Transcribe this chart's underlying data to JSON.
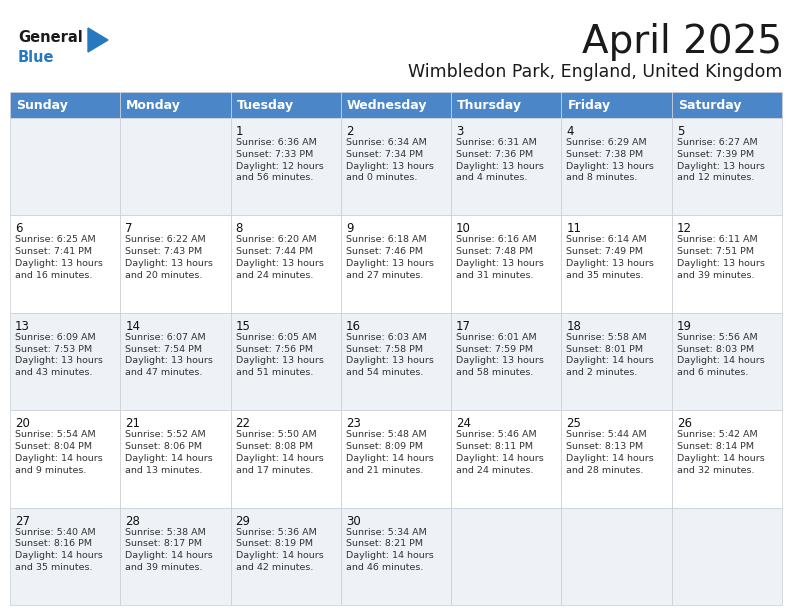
{
  "title": "April 2025",
  "subtitle": "Wimbledon Park, England, United Kingdom",
  "header_bg": "#4a86c8",
  "header_text_color": "#ffffff",
  "cell_bg_light": "#eef2f7",
  "cell_bg_white": "#ffffff",
  "border_color": "#c8cdd4",
  "logo_color": "#2878c0",
  "logo_black": "#1a1a1a",
  "title_color": "#1a1a1a",
  "subtitle_color": "#1a1a1a",
  "cell_text_color": "#333333",
  "cell_num_color": "#111111",
  "title_fontsize": 28,
  "subtitle_fontsize": 12.5,
  "header_fontsize": 9,
  "cell_num_fontsize": 8.5,
  "cell_text_fontsize": 6.8,
  "day_headers": [
    "Sunday",
    "Monday",
    "Tuesday",
    "Wednesday",
    "Thursday",
    "Friday",
    "Saturday"
  ],
  "weeks": [
    [
      {
        "day": "",
        "text": ""
      },
      {
        "day": "",
        "text": ""
      },
      {
        "day": "1",
        "text": "Sunrise: 6:36 AM\nSunset: 7:33 PM\nDaylight: 12 hours\nand 56 minutes."
      },
      {
        "day": "2",
        "text": "Sunrise: 6:34 AM\nSunset: 7:34 PM\nDaylight: 13 hours\nand 0 minutes."
      },
      {
        "day": "3",
        "text": "Sunrise: 6:31 AM\nSunset: 7:36 PM\nDaylight: 13 hours\nand 4 minutes."
      },
      {
        "day": "4",
        "text": "Sunrise: 6:29 AM\nSunset: 7:38 PM\nDaylight: 13 hours\nand 8 minutes."
      },
      {
        "day": "5",
        "text": "Sunrise: 6:27 AM\nSunset: 7:39 PM\nDaylight: 13 hours\nand 12 minutes."
      }
    ],
    [
      {
        "day": "6",
        "text": "Sunrise: 6:25 AM\nSunset: 7:41 PM\nDaylight: 13 hours\nand 16 minutes."
      },
      {
        "day": "7",
        "text": "Sunrise: 6:22 AM\nSunset: 7:43 PM\nDaylight: 13 hours\nand 20 minutes."
      },
      {
        "day": "8",
        "text": "Sunrise: 6:20 AM\nSunset: 7:44 PM\nDaylight: 13 hours\nand 24 minutes."
      },
      {
        "day": "9",
        "text": "Sunrise: 6:18 AM\nSunset: 7:46 PM\nDaylight: 13 hours\nand 27 minutes."
      },
      {
        "day": "10",
        "text": "Sunrise: 6:16 AM\nSunset: 7:48 PM\nDaylight: 13 hours\nand 31 minutes."
      },
      {
        "day": "11",
        "text": "Sunrise: 6:14 AM\nSunset: 7:49 PM\nDaylight: 13 hours\nand 35 minutes."
      },
      {
        "day": "12",
        "text": "Sunrise: 6:11 AM\nSunset: 7:51 PM\nDaylight: 13 hours\nand 39 minutes."
      }
    ],
    [
      {
        "day": "13",
        "text": "Sunrise: 6:09 AM\nSunset: 7:53 PM\nDaylight: 13 hours\nand 43 minutes."
      },
      {
        "day": "14",
        "text": "Sunrise: 6:07 AM\nSunset: 7:54 PM\nDaylight: 13 hours\nand 47 minutes."
      },
      {
        "day": "15",
        "text": "Sunrise: 6:05 AM\nSunset: 7:56 PM\nDaylight: 13 hours\nand 51 minutes."
      },
      {
        "day": "16",
        "text": "Sunrise: 6:03 AM\nSunset: 7:58 PM\nDaylight: 13 hours\nand 54 minutes."
      },
      {
        "day": "17",
        "text": "Sunrise: 6:01 AM\nSunset: 7:59 PM\nDaylight: 13 hours\nand 58 minutes."
      },
      {
        "day": "18",
        "text": "Sunrise: 5:58 AM\nSunset: 8:01 PM\nDaylight: 14 hours\nand 2 minutes."
      },
      {
        "day": "19",
        "text": "Sunrise: 5:56 AM\nSunset: 8:03 PM\nDaylight: 14 hours\nand 6 minutes."
      }
    ],
    [
      {
        "day": "20",
        "text": "Sunrise: 5:54 AM\nSunset: 8:04 PM\nDaylight: 14 hours\nand 9 minutes."
      },
      {
        "day": "21",
        "text": "Sunrise: 5:52 AM\nSunset: 8:06 PM\nDaylight: 14 hours\nand 13 minutes."
      },
      {
        "day": "22",
        "text": "Sunrise: 5:50 AM\nSunset: 8:08 PM\nDaylight: 14 hours\nand 17 minutes."
      },
      {
        "day": "23",
        "text": "Sunrise: 5:48 AM\nSunset: 8:09 PM\nDaylight: 14 hours\nand 21 minutes."
      },
      {
        "day": "24",
        "text": "Sunrise: 5:46 AM\nSunset: 8:11 PM\nDaylight: 14 hours\nand 24 minutes."
      },
      {
        "day": "25",
        "text": "Sunrise: 5:44 AM\nSunset: 8:13 PM\nDaylight: 14 hours\nand 28 minutes."
      },
      {
        "day": "26",
        "text": "Sunrise: 5:42 AM\nSunset: 8:14 PM\nDaylight: 14 hours\nand 32 minutes."
      }
    ],
    [
      {
        "day": "27",
        "text": "Sunrise: 5:40 AM\nSunset: 8:16 PM\nDaylight: 14 hours\nand 35 minutes."
      },
      {
        "day": "28",
        "text": "Sunrise: 5:38 AM\nSunset: 8:17 PM\nDaylight: 14 hours\nand 39 minutes."
      },
      {
        "day": "29",
        "text": "Sunrise: 5:36 AM\nSunset: 8:19 PM\nDaylight: 14 hours\nand 42 minutes."
      },
      {
        "day": "30",
        "text": "Sunrise: 5:34 AM\nSunset: 8:21 PM\nDaylight: 14 hours\nand 46 minutes."
      },
      {
        "day": "",
        "text": ""
      },
      {
        "day": "",
        "text": ""
      },
      {
        "day": "",
        "text": ""
      }
    ]
  ]
}
